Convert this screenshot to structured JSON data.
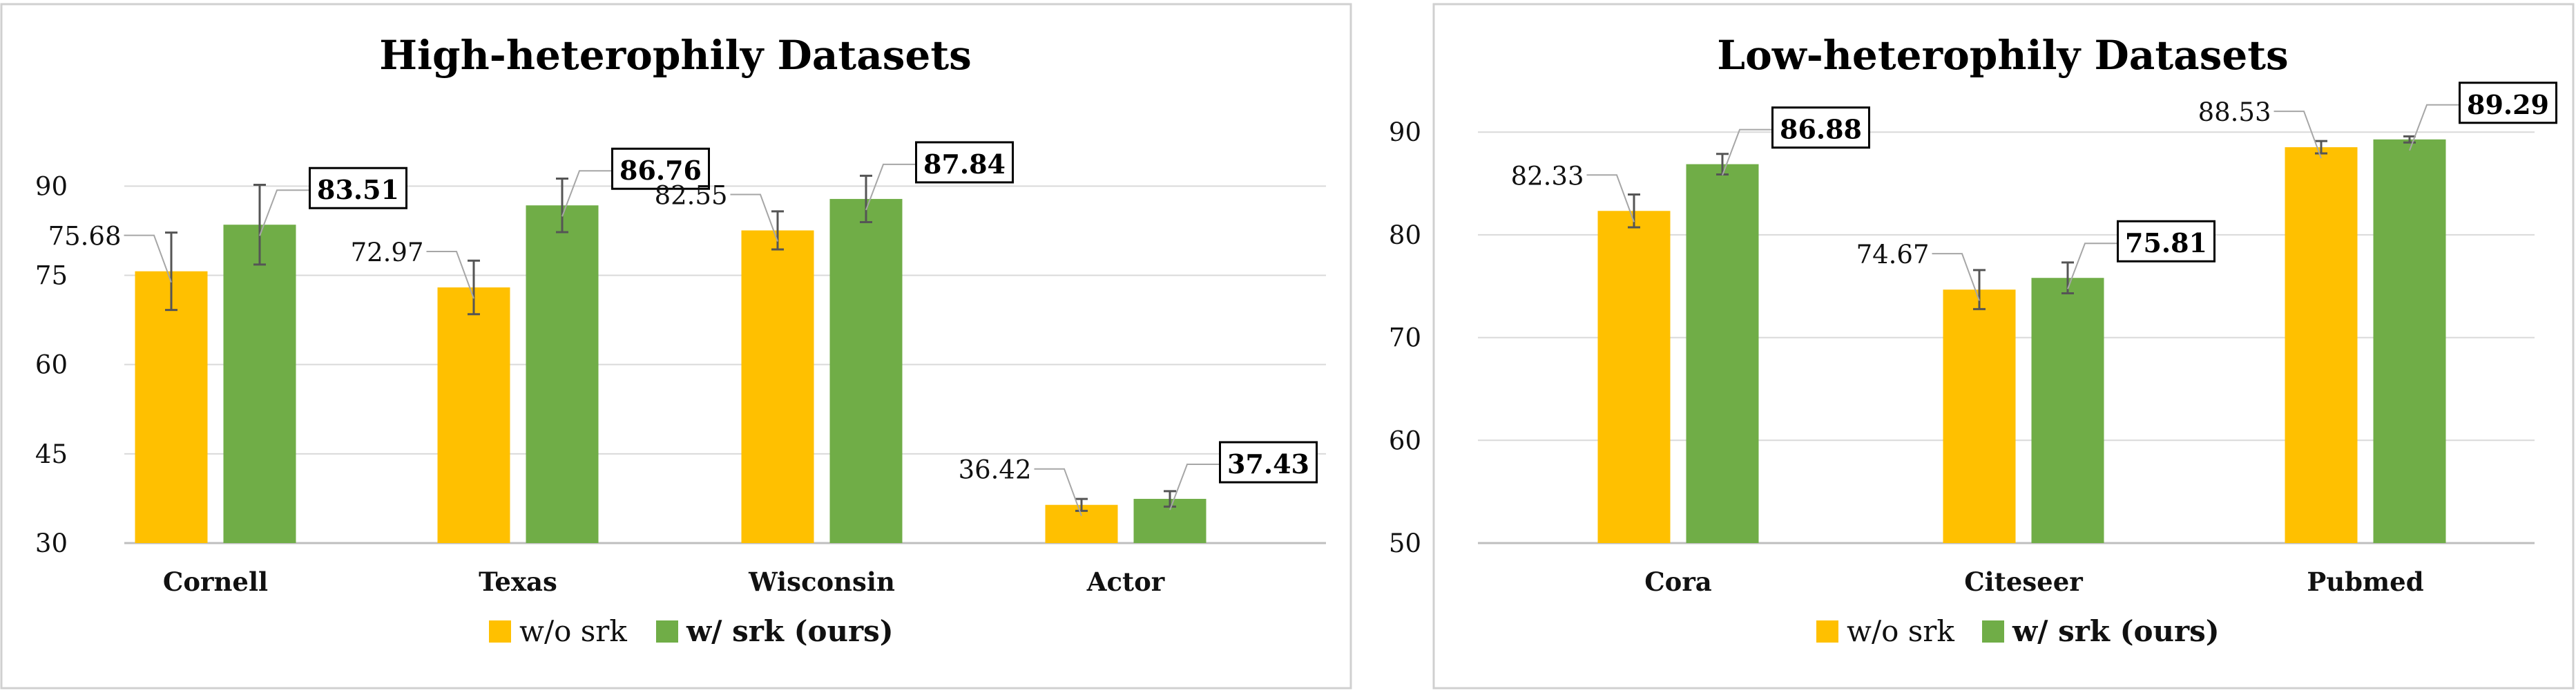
{
  "legend": {
    "items": [
      {
        "label": "w/o srk",
        "color": "#FFC000",
        "bold": false
      },
      {
        "label": "w/ srk (ours)",
        "color": "#70AD47",
        "bold": true
      }
    ]
  },
  "chart_data": [
    {
      "type": "bar",
      "title": "High-heterophily Datasets",
      "categories": [
        "Cornell",
        "Texas",
        "Wisconsin",
        "Actor"
      ],
      "yticks": [
        30,
        45,
        60,
        75,
        90
      ],
      "ylim": [
        30,
        102
      ],
      "grid": true,
      "legend_position": "bottom",
      "series": [
        {
          "name": "w/o srk",
          "color": "#FFC000",
          "values": [
            75.68,
            72.97,
            82.55,
            36.42
          ],
          "errors": [
            6.5,
            4.5,
            3.2,
            1.0
          ],
          "labels": [
            "75.68",
            "72.97",
            "82.55",
            "36.42"
          ]
        },
        {
          "name": "w/ srk (ours)",
          "color": "#70AD47",
          "values": [
            83.51,
            86.76,
            87.84,
            37.43
          ],
          "errors": [
            6.7,
            4.5,
            3.9,
            1.3
          ],
          "labels": [
            "83.51",
            "86.76",
            "87.84",
            "37.43"
          ]
        }
      ]
    },
    {
      "type": "bar",
      "title": "Low-heterophily Datasets",
      "categories": [
        "Cora",
        "Citeseer",
        "Pubmed"
      ],
      "yticks": [
        50,
        60,
        70,
        80,
        90
      ],
      "ylim": [
        50,
        96
      ],
      "grid": true,
      "legend_position": "bottom",
      "series": [
        {
          "name": "w/o srk",
          "color": "#FFC000",
          "values": [
            82.33,
            74.67,
            88.53
          ],
          "errors": [
            1.6,
            1.9,
            0.6
          ],
          "labels": [
            "82.33",
            "74.67",
            "88.53"
          ]
        },
        {
          "name": "w/ srk (ours)",
          "color": "#70AD47",
          "values": [
            86.88,
            75.81,
            89.29
          ],
          "errors": [
            1.0,
            1.5,
            0.3
          ],
          "labels": [
            "86.88",
            "75.81",
            "89.29"
          ]
        }
      ]
    }
  ]
}
